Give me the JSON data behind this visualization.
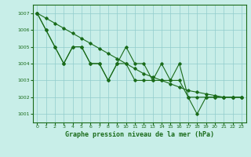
{
  "title": "Graphe pression niveau de la mer (hPa)",
  "bg_color": "#c8eee8",
  "grid_color": "#90cccc",
  "line_color": "#1a6b1a",
  "ylim": [
    1000.5,
    1007.5
  ],
  "xlim": [
    -0.5,
    23.5
  ],
  "yticks": [
    1001,
    1002,
    1003,
    1004,
    1005,
    1006,
    1007
  ],
  "xticks": [
    0,
    1,
    2,
    3,
    4,
    5,
    6,
    7,
    8,
    9,
    10,
    11,
    12,
    13,
    14,
    15,
    16,
    17,
    18,
    19,
    20,
    21,
    22,
    23
  ],
  "y_zigzag": [
    1007,
    1006,
    1005,
    1004,
    1005,
    1005,
    1004,
    1004,
    1003,
    1004,
    1005,
    1004,
    1004,
    1003,
    1004,
    1003,
    1004,
    1002,
    1001,
    1002,
    1002,
    1002,
    1002,
    1002
  ],
  "y_smooth": [
    1007,
    1006,
    1005,
    1004,
    1005,
    1005,
    1004,
    1004,
    1003,
    1004,
    1004,
    1003,
    1003,
    1003,
    1003,
    1003,
    1003,
    1002,
    1002,
    1002,
    1002,
    1002,
    1002,
    1002
  ],
  "y_linear": [
    1007,
    1006.7,
    1006.4,
    1006.1,
    1005.8,
    1005.5,
    1005.2,
    1004.9,
    1004.6,
    1004.3,
    1004.0,
    1003.7,
    1003.4,
    1003.2,
    1003.0,
    1002.8,
    1002.6,
    1002.4,
    1002.3,
    1002.2,
    1002.1,
    1002.0,
    1002.0,
    1002.0
  ]
}
